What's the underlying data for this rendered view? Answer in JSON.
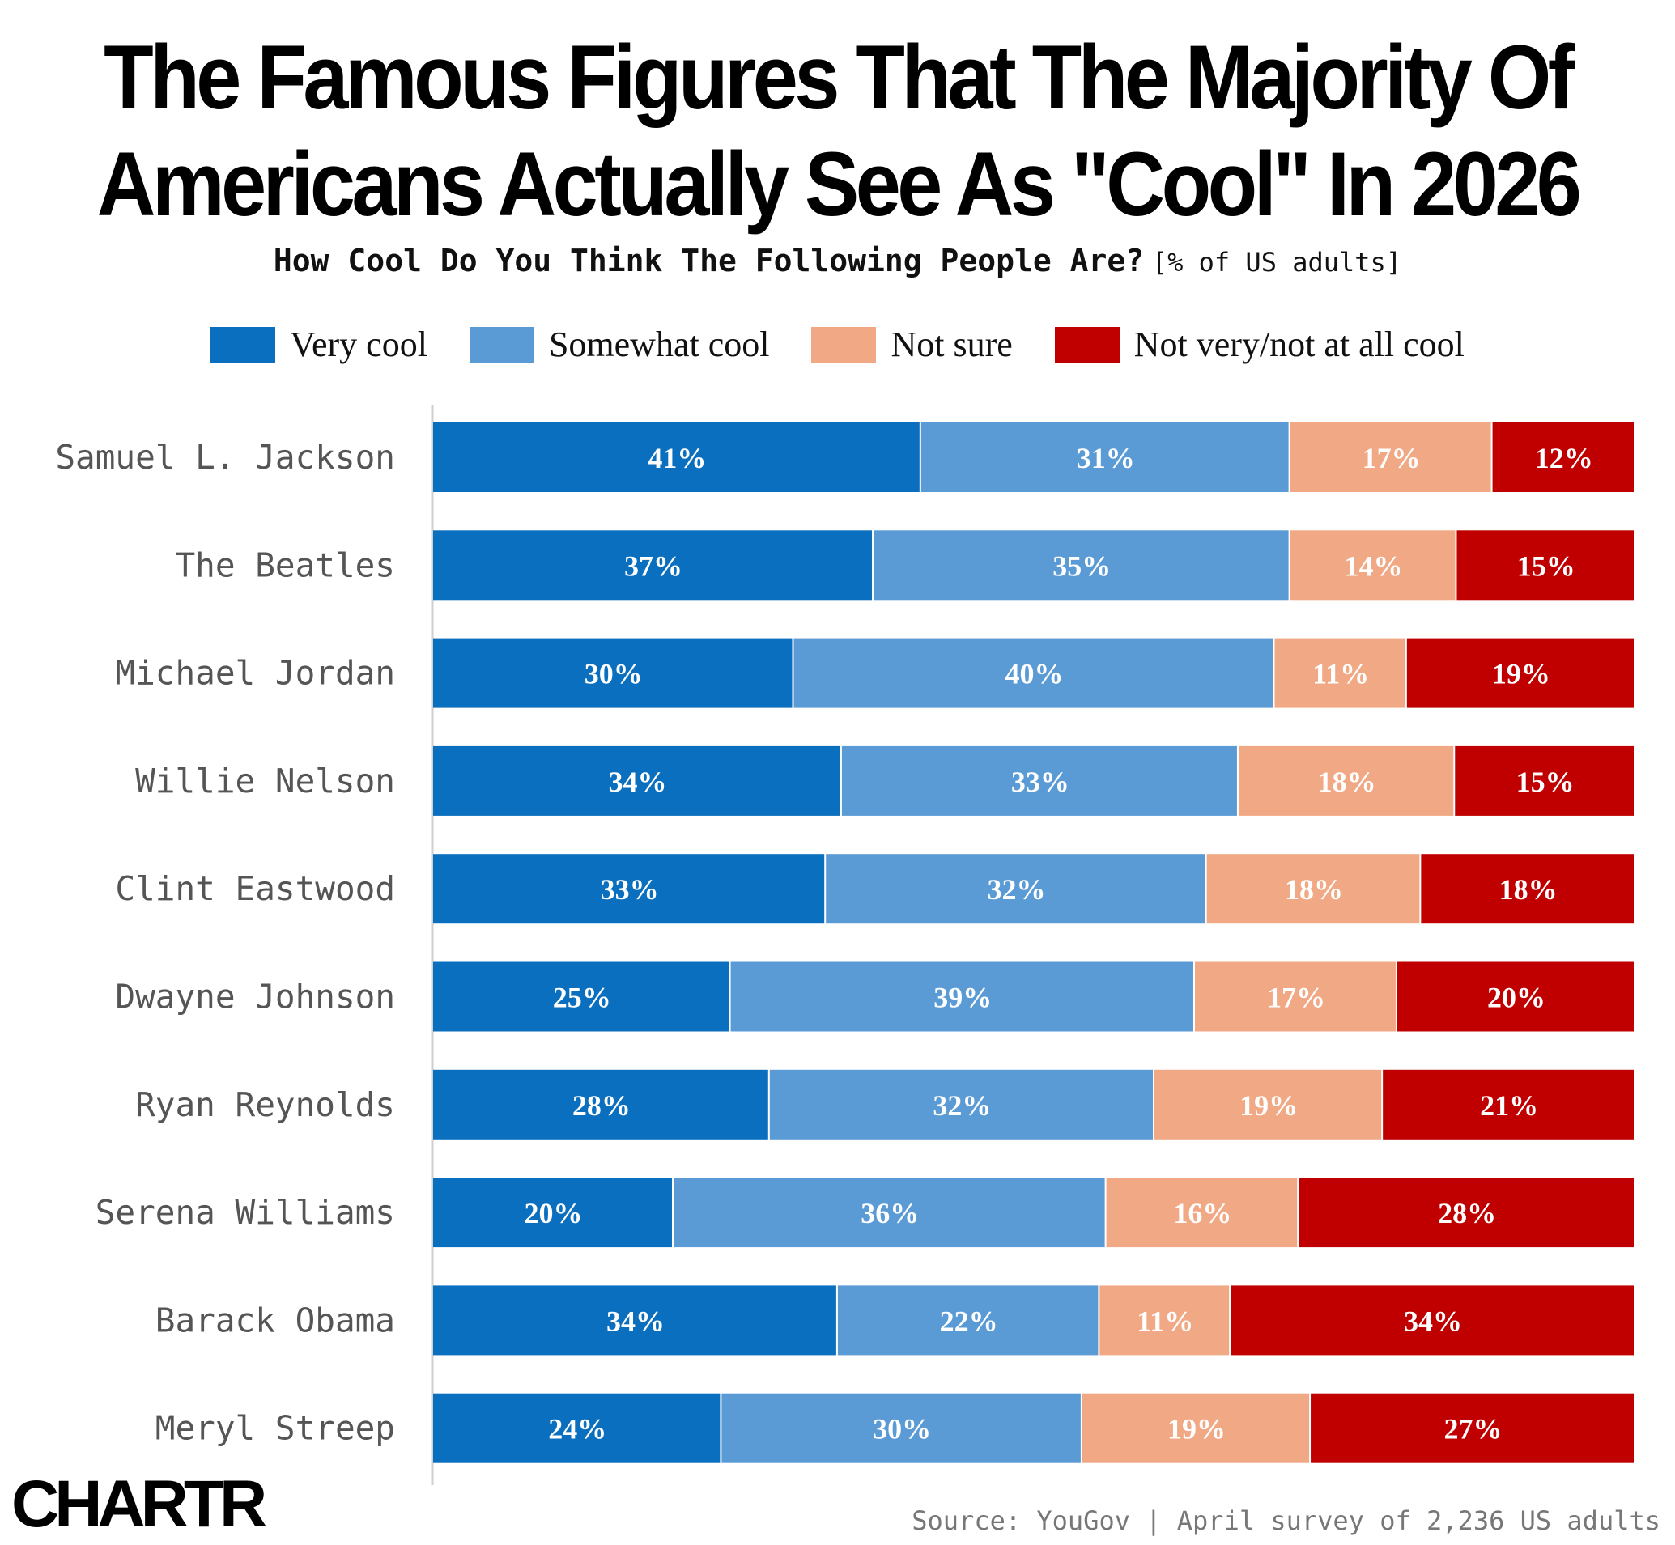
{
  "title_line1": "The Famous Figures That The Majority Of",
  "title_line2": "Americans Actually See As \"Cool\" In 2026",
  "subtitle_question": "How Cool Do You Think The Following People Are?",
  "subtitle_unit": "[% of US adults]",
  "source": "Source: YouGov | April survey of 2,236 US adults",
  "logo": "CHARTR",
  "chart_data": {
    "type": "bar",
    "orientation": "horizontal",
    "stacked": true,
    "legend_position": "top",
    "grid": false,
    "xlim": [
      0,
      100
    ],
    "categories": [
      "Samuel L. Jackson",
      "The Beatles",
      "Michael Jordan",
      "Willie Nelson",
      "Clint Eastwood",
      "Dwayne Johnson",
      "Ryan Reynolds",
      "Serena Williams",
      "Barack Obama",
      "Meryl Streep"
    ],
    "series": [
      {
        "name": "Very cool",
        "color": "#0b6fbf",
        "values": [
          41,
          37,
          30,
          34,
          33,
          25,
          28,
          20,
          34,
          24
        ]
      },
      {
        "name": "Somewhat cool",
        "color": "#5b9bd5",
        "values": [
          31,
          35,
          40,
          33,
          32,
          39,
          32,
          36,
          22,
          30
        ]
      },
      {
        "name": "Not sure",
        "color": "#f0a984",
        "values": [
          17,
          14,
          11,
          18,
          18,
          17,
          19,
          16,
          11,
          19
        ]
      },
      {
        "name": "Not very/not at all cool",
        "color": "#c00000",
        "values": [
          12,
          15,
          19,
          15,
          18,
          20,
          21,
          28,
          34,
          27
        ]
      }
    ],
    "value_suffix": "%"
  }
}
